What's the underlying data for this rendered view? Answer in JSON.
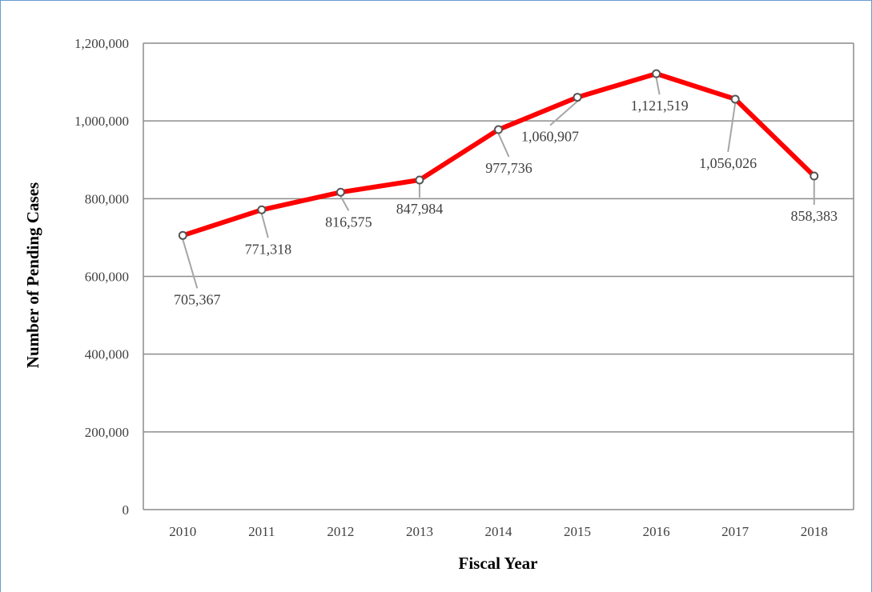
{
  "chart_data": {
    "type": "line",
    "title": "",
    "xlabel": "Fiscal Year",
    "ylabel": "Number of Pending Cases",
    "categories": [
      "2010",
      "2011",
      "2012",
      "2013",
      "2014",
      "2015",
      "2016",
      "2017",
      "2018"
    ],
    "series": [
      {
        "values": [
          705367,
          771318,
          816575,
          847984,
          977736,
          1060907,
          1121519,
          1056026,
          858383
        ],
        "labels": [
          "705,367",
          "771,318",
          "816,575",
          "847,984",
          "977,736",
          "1,060,907",
          "1,121,519",
          "1,056,026",
          "858,383"
        ],
        "color": "#ff0000"
      }
    ],
    "ylim": [
      0,
      1200000
    ],
    "yticks": [
      "0",
      "200,000",
      "400,000",
      "600,000",
      "800,000",
      "1,000,000",
      "1,200,000"
    ],
    "grid": true,
    "legend": "none",
    "colors": {
      "line": "#ff0000",
      "grid": "#8c8c8c",
      "leader": "#a6a6a6",
      "frame_border": "#6b9bd1"
    }
  }
}
